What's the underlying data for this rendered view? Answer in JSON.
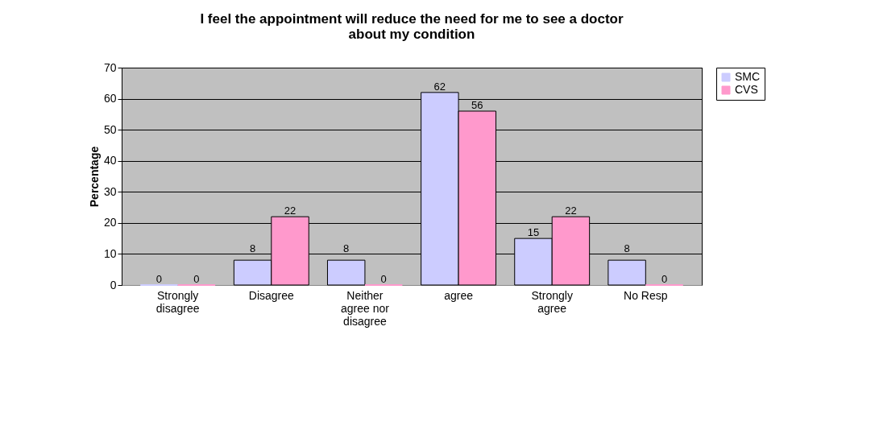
{
  "chart_data": {
    "type": "bar",
    "title": "I feel the appointment will reduce the need for me to see a doctor about my condition",
    "ylabel": "Percentage",
    "categories": [
      "Strongly disagree",
      "Disagree",
      "Neither agree nor disagree",
      "agree",
      "Strongly agree",
      "No Resp"
    ],
    "series": [
      {
        "name": "SMC",
        "color": "#ccccff",
        "values": [
          0,
          8,
          8,
          62,
          15,
          8
        ]
      },
      {
        "name": "CVS",
        "color": "#ff99cc",
        "values": [
          0,
          22,
          0,
          56,
          22,
          0
        ]
      }
    ],
    "ylim": [
      0,
      70
    ],
    "yticks": [
      0,
      10,
      20,
      30,
      40,
      50,
      60,
      70
    ],
    "grid": "y",
    "legend": "right",
    "data_labels": true
  }
}
